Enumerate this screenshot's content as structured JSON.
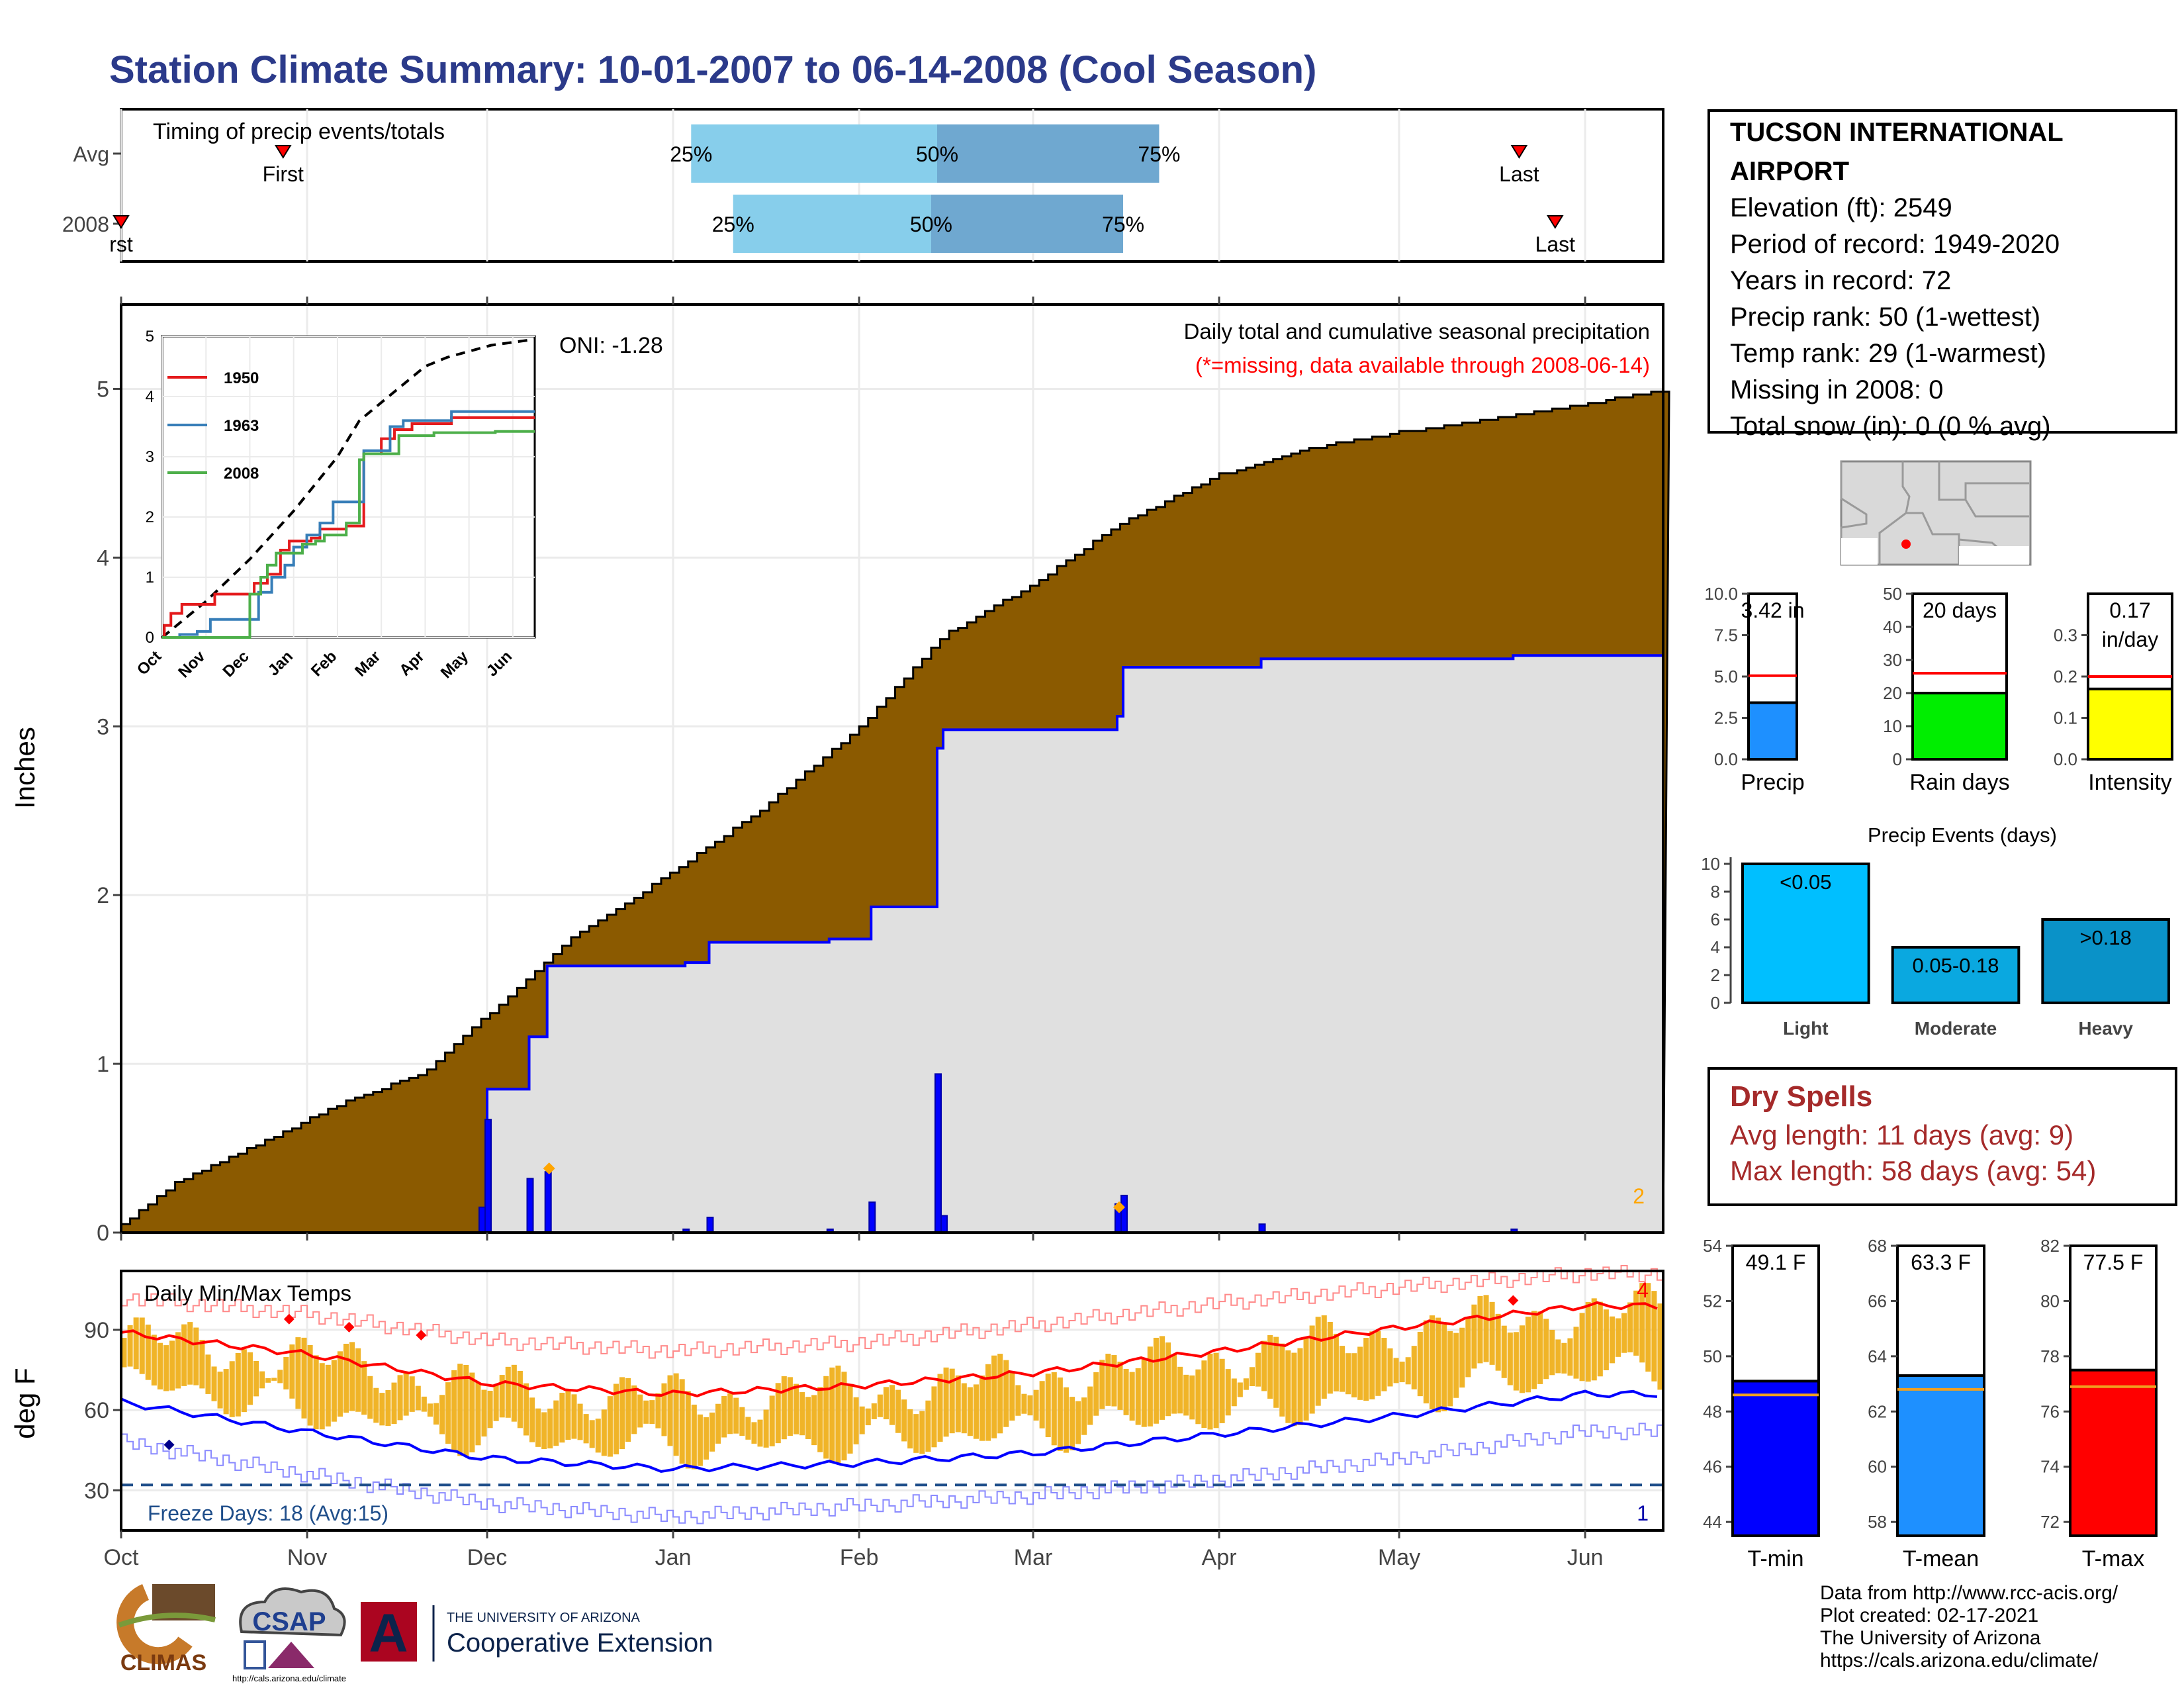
{
  "title": "Station Climate Summary: 10-01-2007 to 06-14-2008 (Cool Season)",
  "station": {
    "name_line1": "TUCSON INTERNATIONAL",
    "name_line2": "AIRPORT",
    "lines": [
      "Elevation (ft): 2549",
      "Period of record: 1949-2020",
      "Years in record: 72",
      "Precip rank: 50 (1-wettest)",
      "Temp rank: 29 (1-warmest)",
      "Missing in 2008: 0",
      "Total snow (in): 0 (0 % avg)"
    ]
  },
  "dry_spells": {
    "title": "Dry Spells",
    "avg_line": "Avg length: 11 days (avg: 9)",
    "max_line": "Max length: 58 days (avg: 54)"
  },
  "credits": [
    "Data from http://www.rcc-acis.org/",
    "Plot created: 02-17-2021",
    "The University of Arizona",
    "https://cals.arizona.edu/climate/"
  ],
  "logos": {
    "climas": "CLIMAS",
    "csap": "CSAP",
    "csap_url": "http://cals.arizona.edu/climate",
    "ua_small": "THE UNIVERSITY OF ARIZONA",
    "ua_big": "Cooperative Extension",
    "ua_letter": "A"
  },
  "colors": {
    "title": "#2b3a8a",
    "cumulative_fill": "#8b5a00",
    "season_fill": "#e0e0e0",
    "daily_bars": "#0000ff",
    "quartile_light": "#87ceeb",
    "quartile_dark": "#6fa8d0",
    "temp_bars": "#f0b428",
    "precip_bar": "#1e90ff",
    "raindays_bar": "#00ee00",
    "intensity_bar": "#ffff00",
    "tmin_bar": "#0000ff",
    "tmean_bar": "#1e90ff",
    "tmax_bar": "#ff0000",
    "dry_text": "#a52a2a"
  },
  "chart_data": [
    {
      "id": "timing",
      "type": "bar",
      "title": "Timing of precip events/totals",
      "y_categories": [
        "Avg",
        "2008"
      ],
      "rows": [
        {
          "label": "Avg",
          "first": "Oct 28",
          "p25": "Jan 4",
          "p50": "Feb 14",
          "p75": "Mar 22",
          "last": "May 21",
          "labels": {
            "first": "First",
            "p25": "25%",
            "p50": "50%",
            "p75": "75%",
            "last": "Last"
          }
        },
        {
          "label": "2008",
          "first": "Oct 1",
          "p25": "Jan 11",
          "p50": "Feb 13",
          "p75": "Mar 16",
          "last": "May 27",
          "labels": {
            "first": "rst",
            "p25": "25%",
            "p50": "50%",
            "p75": "75%",
            "last": "Last"
          }
        }
      ]
    },
    {
      "id": "precip_main",
      "type": "area",
      "ylabel": "Inches",
      "ylim": [
        0,
        5.5
      ],
      "yticks": [
        "0",
        "1",
        "2",
        "3",
        "4",
        "5"
      ],
      "annotations": {
        "oni": "ONI: -1.28",
        "desc1": "Daily total and cumulative seasonal precipitation",
        "desc2": "(*=missing, data available through 2008-06-14)",
        "corner_count": "2"
      },
      "cumulative_avg_2008_end": 5.0,
      "season_cumulative_steps": [
        {
          "date": "Oct 1",
          "value": 0.0
        },
        {
          "date": "Nov 30",
          "value": 0.02
        },
        {
          "date": "Dec 1",
          "value": 0.72
        },
        {
          "date": "Dec 1",
          "value": 0.85
        },
        {
          "date": "Dec 8",
          "value": 1.16
        },
        {
          "date": "Dec 11",
          "value": 1.58
        },
        {
          "date": "Jan 3",
          "value": 1.6
        },
        {
          "date": "Jan 7",
          "value": 1.72
        },
        {
          "date": "Jan 27",
          "value": 1.74
        },
        {
          "date": "Feb 3",
          "value": 1.93
        },
        {
          "date": "Feb 14",
          "value": 2.87
        },
        {
          "date": "Feb 15",
          "value": 2.98
        },
        {
          "date": "Mar 15",
          "value": 3.06
        },
        {
          "date": "Mar 16",
          "value": 3.35
        },
        {
          "date": "Apr 8",
          "value": 3.4
        },
        {
          "date": "May 20",
          "value": 3.42
        }
      ],
      "daily_bars": [
        {
          "date": "Nov 30",
          "value": 0.15
        },
        {
          "date": "Dec 1",
          "value": 0.67
        },
        {
          "date": "Dec 8",
          "value": 0.32
        },
        {
          "date": "Dec 11",
          "value": 0.36
        },
        {
          "date": "Jan 3",
          "value": 0.02
        },
        {
          "date": "Jan 7",
          "value": 0.09
        },
        {
          "date": "Jan 27",
          "value": 0.02
        },
        {
          "date": "Feb 3",
          "value": 0.18
        },
        {
          "date": "Feb 14",
          "value": 0.94
        },
        {
          "date": "Feb 15",
          "value": 0.1
        },
        {
          "date": "Mar 15",
          "value": 0.17
        },
        {
          "date": "Mar 16",
          "value": 0.22
        },
        {
          "date": "Apr 8",
          "value": 0.05
        },
        {
          "date": "May 20",
          "value": 0.02
        }
      ],
      "avg_cumulative_points": [
        {
          "date": "Oct 1",
          "value": 0.05
        },
        {
          "date": "Oct 10",
          "value": 0.3
        },
        {
          "date": "Oct 25",
          "value": 0.55
        },
        {
          "date": "Nov 5",
          "value": 0.75
        },
        {
          "date": "Nov 20",
          "value": 0.95
        },
        {
          "date": "Dec 1",
          "value": 1.3
        },
        {
          "date": "Dec 15",
          "value": 1.75
        },
        {
          "date": "Jan 1",
          "value": 2.15
        },
        {
          "date": "Jan 15",
          "value": 2.5
        },
        {
          "date": "Feb 1",
          "value": 3.0
        },
        {
          "date": "Feb 15",
          "value": 3.55
        },
        {
          "date": "Mar 1",
          "value": 3.85
        },
        {
          "date": "Mar 15",
          "value": 4.2
        },
        {
          "date": "Apr 1",
          "value": 4.5
        },
        {
          "date": "Apr 15",
          "value": 4.65
        },
        {
          "date": "May 1",
          "value": 4.75
        },
        {
          "date": "May 15",
          "value": 4.82
        },
        {
          "date": "Jun 1",
          "value": 4.92
        },
        {
          "date": "Jun 14",
          "value": 5.0
        }
      ],
      "missing_markers": [
        {
          "date": "Dec 11",
          "value": 0.38
        },
        {
          "date": "Mar 15",
          "value": 0.15
        }
      ]
    },
    {
      "id": "inset",
      "type": "line",
      "ylim": [
        0,
        5
      ],
      "yticks": [
        "0",
        "1",
        "2",
        "3",
        "4",
        "5"
      ],
      "xticks": [
        "Oct",
        "Nov",
        "Dec",
        "Jan",
        "Feb",
        "Mar",
        "Apr",
        "May",
        "Jun"
      ],
      "series": [
        {
          "name": "1950",
          "color": "#e41a1c",
          "steps": [
            [
              0,
              0
            ],
            [
              0.05,
              0.2
            ],
            [
              0.2,
              0.4
            ],
            [
              0.45,
              0.55
            ],
            [
              1.0,
              0.55
            ],
            [
              1.2,
              0.72
            ],
            [
              2.0,
              0.72
            ],
            [
              2.1,
              0.9
            ],
            [
              2.4,
              1.05
            ],
            [
              2.7,
              1.45
            ],
            [
              2.9,
              1.6
            ],
            [
              3.4,
              1.65
            ],
            [
              3.6,
              1.8
            ],
            [
              4.2,
              1.85
            ],
            [
              4.6,
              3.05
            ],
            [
              5.0,
              3.3
            ],
            [
              5.3,
              3.45
            ],
            [
              5.7,
              3.55
            ],
            [
              6.5,
              3.55
            ],
            [
              6.6,
              3.65
            ],
            [
              8.5,
              3.65
            ]
          ]
        },
        {
          "name": "1963",
          "color": "#377eb8",
          "steps": [
            [
              0,
              0
            ],
            [
              0.4,
              0.05
            ],
            [
              0.8,
              0.1
            ],
            [
              1.1,
              0.3
            ],
            [
              2.1,
              0.3
            ],
            [
              2.2,
              0.75
            ],
            [
              2.5,
              1.0
            ],
            [
              2.8,
              1.2
            ],
            [
              3.0,
              1.5
            ],
            [
              3.3,
              1.7
            ],
            [
              3.6,
              1.9
            ],
            [
              3.9,
              2.25
            ],
            [
              4.4,
              2.25
            ],
            [
              4.6,
              3.1
            ],
            [
              5.0,
              3.1
            ],
            [
              5.2,
              3.5
            ],
            [
              5.5,
              3.6
            ],
            [
              6.5,
              3.6
            ],
            [
              6.6,
              3.75
            ],
            [
              8.5,
              3.75
            ]
          ]
        },
        {
          "name": "2008",
          "color": "#4daf4a",
          "steps": [
            [
              0,
              0
            ],
            [
              1.9,
              0.0
            ],
            [
              2.0,
              0.72
            ],
            [
              2.25,
              1.0
            ],
            [
              2.4,
              1.2
            ],
            [
              2.6,
              1.4
            ],
            [
              3.2,
              1.55
            ],
            [
              3.5,
              1.6
            ],
            [
              3.7,
              1.7
            ],
            [
              4.2,
              1.9
            ],
            [
              4.5,
              2.95
            ],
            [
              4.6,
              3.05
            ],
            [
              5.3,
              3.05
            ],
            [
              5.4,
              3.35
            ],
            [
              6.2,
              3.4
            ],
            [
              7.6,
              3.42
            ],
            [
              8.5,
              3.42
            ]
          ]
        }
      ],
      "avg_dashed": [
        [
          0,
          0
        ],
        [
          1,
          0.6
        ],
        [
          2,
          1.3
        ],
        [
          3,
          2.1
        ],
        [
          4,
          3.0
        ],
        [
          4.5,
          3.6
        ],
        [
          5,
          3.9
        ],
        [
          5.5,
          4.2
        ],
        [
          6,
          4.5
        ],
        [
          6.5,
          4.65
        ],
        [
          7,
          4.75
        ],
        [
          7.5,
          4.85
        ],
        [
          8,
          4.9
        ],
        [
          8.5,
          4.95
        ]
      ]
    },
    {
      "id": "temps",
      "type": "bar",
      "title": "Daily Min/Max Temps",
      "ylabel": "deg F",
      "yticks": [
        "30",
        "60",
        "90"
      ],
      "xticks": [
        "Oct",
        "Nov",
        "Dec",
        "Jan",
        "Feb",
        "Mar",
        "Apr",
        "May",
        "Jun"
      ],
      "freeze_line": 32,
      "freeze_text": "Freeze Days: 18 (Avg:15)",
      "count_high": "4",
      "count_low": "1",
      "normal_max_monthly": [
        89,
        81,
        70,
        66,
        69,
        74,
        82,
        91,
        99
      ],
      "normal_min_monthly": [
        63,
        52,
        42,
        38,
        40,
        44,
        51,
        58,
        66
      ],
      "record_max_monthly": [
        102,
        96,
        86,
        82,
        85,
        92,
        100,
        106,
        111
      ],
      "record_min_monthly": [
        48,
        36,
        25,
        20,
        24,
        28,
        34,
        42,
        52
      ]
    },
    {
      "id": "precip_total",
      "type": "bar",
      "categories": [
        "Precip"
      ],
      "values": [
        3.42
      ],
      "avg": 5.05,
      "label": "3.42 in",
      "ylim": [
        0,
        10
      ],
      "yticks": [
        "0.0",
        "2.5",
        "5.0",
        "7.5",
        "10.0"
      ]
    },
    {
      "id": "rain_days",
      "type": "bar",
      "categories": [
        "Rain days"
      ],
      "values": [
        20
      ],
      "avg": 26,
      "label": "20 days",
      "ylim": [
        0,
        50
      ],
      "yticks": [
        "0",
        "10",
        "20",
        "30",
        "40",
        "50"
      ]
    },
    {
      "id": "intensity",
      "type": "bar",
      "categories": [
        "Intensity"
      ],
      "values": [
        0.17
      ],
      "avg": 0.2,
      "label_line1": "0.17",
      "label_line2": "in/day",
      "ylim": [
        0,
        0.4
      ],
      "yticks": [
        "0.0",
        "0.1",
        "0.2",
        "0.3"
      ]
    },
    {
      "id": "precip_events",
      "type": "bar",
      "title": "Precip Events (days)",
      "categories": [
        "Light",
        "Moderate",
        "Heavy"
      ],
      "values": [
        10,
        4,
        6
      ],
      "bar_labels": [
        "<0.05",
        "0.05-0.18",
        ">0.18"
      ],
      "ylim": [
        0,
        10
      ],
      "yticks": [
        "0",
        "2",
        "4",
        "6",
        "8",
        "10"
      ]
    },
    {
      "id": "tmin",
      "type": "bar",
      "categories": [
        "T-min"
      ],
      "values": [
        49.1
      ],
      "avg": 48.6,
      "label": "49.1 F",
      "ylim": [
        43.5,
        54
      ],
      "yticks": [
        "44",
        "46",
        "48",
        "50",
        "52",
        "54"
      ]
    },
    {
      "id": "tmean",
      "type": "bar",
      "categories": [
        "T-mean"
      ],
      "values": [
        63.3
      ],
      "avg": 62.8,
      "label": "63.3 F",
      "ylim": [
        57.5,
        68
      ],
      "yticks": [
        "58",
        "60",
        "62",
        "64",
        "66",
        "68"
      ]
    },
    {
      "id": "tmax",
      "type": "bar",
      "categories": [
        "T-max"
      ],
      "values": [
        77.5
      ],
      "avg": 76.9,
      "label": "77.5 F",
      "ylim": [
        71.5,
        82
      ],
      "yticks": [
        "72",
        "74",
        "76",
        "78",
        "80",
        "82"
      ]
    }
  ]
}
